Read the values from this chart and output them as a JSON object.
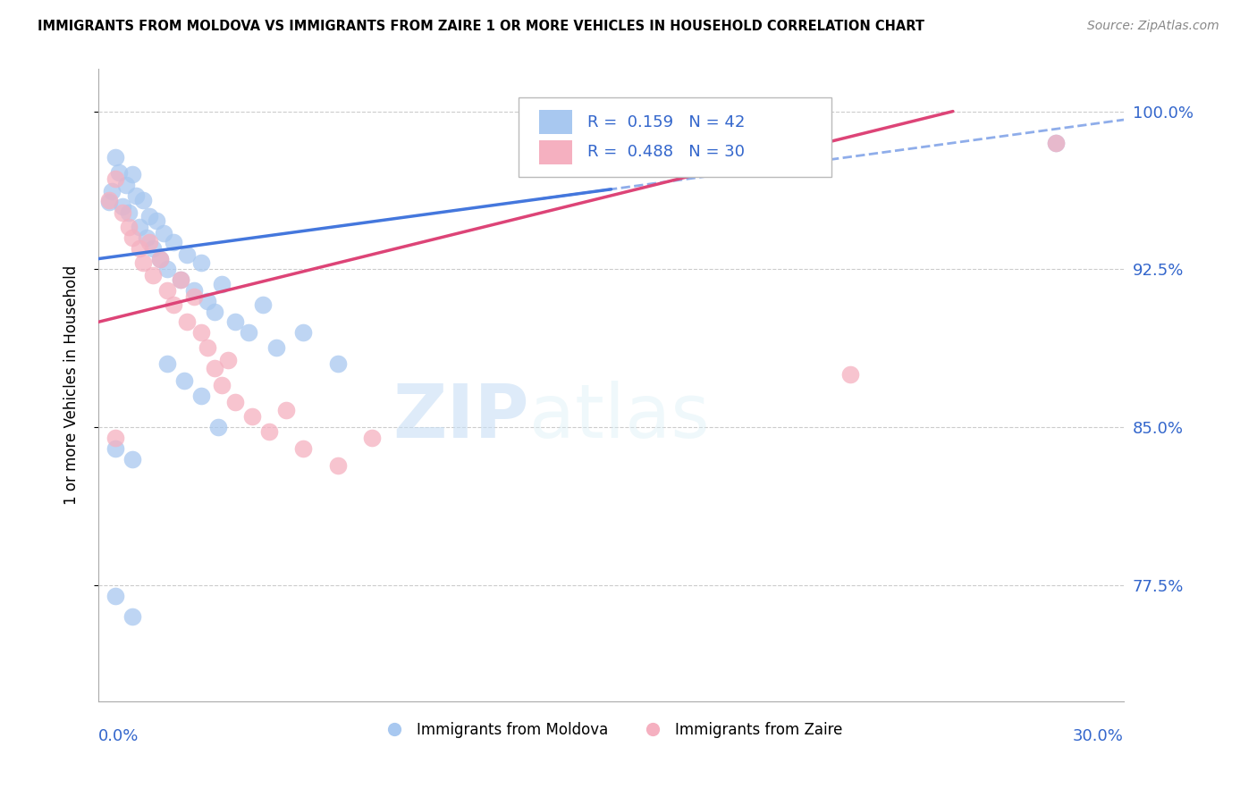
{
  "title": "IMMIGRANTS FROM MOLDOVA VS IMMIGRANTS FROM ZAIRE 1 OR MORE VEHICLES IN HOUSEHOLD CORRELATION CHART",
  "source": "Source: ZipAtlas.com",
  "ylabel": "1 or more Vehicles in Household",
  "xlim": [
    0.0,
    0.3
  ],
  "ylim": [
    0.72,
    1.02
  ],
  "ytick_values": [
    0.775,
    0.85,
    0.925,
    1.0
  ],
  "xtick_values": [
    0.0,
    0.05,
    0.1,
    0.15,
    0.2,
    0.25,
    0.3
  ],
  "moldova_color": "#a8c8f0",
  "zaire_color": "#f5b0c0",
  "moldova_line_color": "#4477dd",
  "zaire_line_color": "#dd4477",
  "moldova_R": 0.159,
  "moldova_N": 42,
  "zaire_R": 0.488,
  "zaire_N": 30,
  "legend_label_moldova": "Immigrants from Moldova",
  "legend_label_zaire": "Immigrants from Zaire",
  "moldova_points": [
    [
      0.003,
      0.957
    ],
    [
      0.004,
      0.962
    ],
    [
      0.005,
      0.978
    ],
    [
      0.006,
      0.971
    ],
    [
      0.007,
      0.955
    ],
    [
      0.008,
      0.965
    ],
    [
      0.009,
      0.952
    ],
    [
      0.01,
      0.97
    ],
    [
      0.011,
      0.96
    ],
    [
      0.012,
      0.945
    ],
    [
      0.013,
      0.958
    ],
    [
      0.014,
      0.94
    ],
    [
      0.015,
      0.95
    ],
    [
      0.016,
      0.935
    ],
    [
      0.017,
      0.948
    ],
    [
      0.018,
      0.93
    ],
    [
      0.019,
      0.942
    ],
    [
      0.02,
      0.925
    ],
    [
      0.022,
      0.938
    ],
    [
      0.024,
      0.92
    ],
    [
      0.026,
      0.932
    ],
    [
      0.028,
      0.915
    ],
    [
      0.03,
      0.928
    ],
    [
      0.032,
      0.91
    ],
    [
      0.034,
      0.905
    ],
    [
      0.036,
      0.918
    ],
    [
      0.04,
      0.9
    ],
    [
      0.044,
      0.895
    ],
    [
      0.048,
      0.908
    ],
    [
      0.052,
      0.888
    ],
    [
      0.06,
      0.895
    ],
    [
      0.07,
      0.88
    ],
    [
      0.02,
      0.88
    ],
    [
      0.025,
      0.872
    ],
    [
      0.03,
      0.865
    ],
    [
      0.035,
      0.85
    ],
    [
      0.005,
      0.84
    ],
    [
      0.01,
      0.835
    ],
    [
      0.13,
      0.978
    ],
    [
      0.005,
      0.77
    ],
    [
      0.01,
      0.76
    ],
    [
      0.28,
      0.985
    ]
  ],
  "zaire_points": [
    [
      0.003,
      0.958
    ],
    [
      0.005,
      0.968
    ],
    [
      0.007,
      0.952
    ],
    [
      0.009,
      0.945
    ],
    [
      0.01,
      0.94
    ],
    [
      0.012,
      0.935
    ],
    [
      0.013,
      0.928
    ],
    [
      0.015,
      0.938
    ],
    [
      0.016,
      0.922
    ],
    [
      0.018,
      0.93
    ],
    [
      0.02,
      0.915
    ],
    [
      0.022,
      0.908
    ],
    [
      0.024,
      0.92
    ],
    [
      0.026,
      0.9
    ],
    [
      0.028,
      0.912
    ],
    [
      0.03,
      0.895
    ],
    [
      0.032,
      0.888
    ],
    [
      0.034,
      0.878
    ],
    [
      0.036,
      0.87
    ],
    [
      0.038,
      0.882
    ],
    [
      0.04,
      0.862
    ],
    [
      0.045,
      0.855
    ],
    [
      0.05,
      0.848
    ],
    [
      0.055,
      0.858
    ],
    [
      0.06,
      0.84
    ],
    [
      0.07,
      0.832
    ],
    [
      0.08,
      0.845
    ],
    [
      0.005,
      0.845
    ],
    [
      0.22,
      0.875
    ],
    [
      0.28,
      0.985
    ]
  ]
}
